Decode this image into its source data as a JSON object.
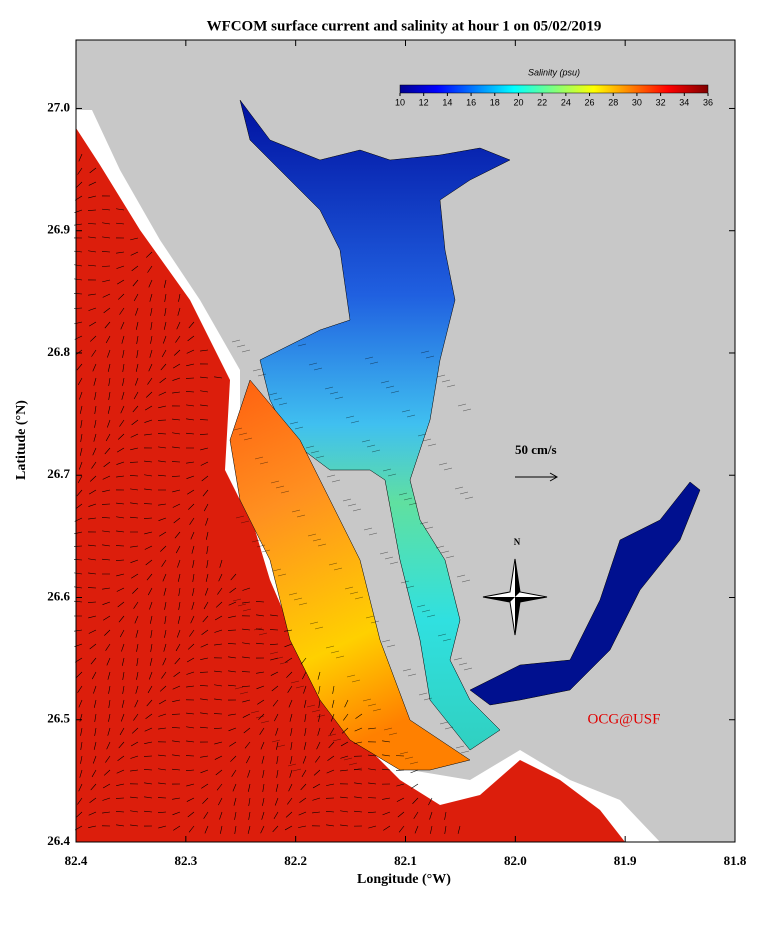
{
  "title": "WFCOM surface current and salinity at hour 1 on 05/02/2019",
  "map": {
    "xlabel": "Longitude (°W)",
    "ylabel": "Latitude (°N)",
    "xlim": [
      82.4,
      81.8
    ],
    "ylim": [
      26.4,
      27.056
    ],
    "xticks": [
      82.4,
      82.3,
      82.2,
      82.1,
      {
        "value": 82,
        "label": "82.0"
      },
      81.9,
      81.8
    ],
    "yticks": [
      26.4,
      26.5,
      26.6,
      26.7,
      26.8,
      26.9,
      {
        "value": 27,
        "label": "27.0"
      }
    ]
  },
  "colorbar": {
    "label": "Salinity (psu)",
    "range": [
      10,
      36
    ],
    "ticks": [
      10,
      12,
      14,
      16,
      18,
      20,
      22,
      24,
      26,
      28,
      30,
      32,
      34,
      36
    ]
  },
  "scale_arrow": "50 cm/s",
  "compass": "N",
  "credit": "OCG@USF"
}
